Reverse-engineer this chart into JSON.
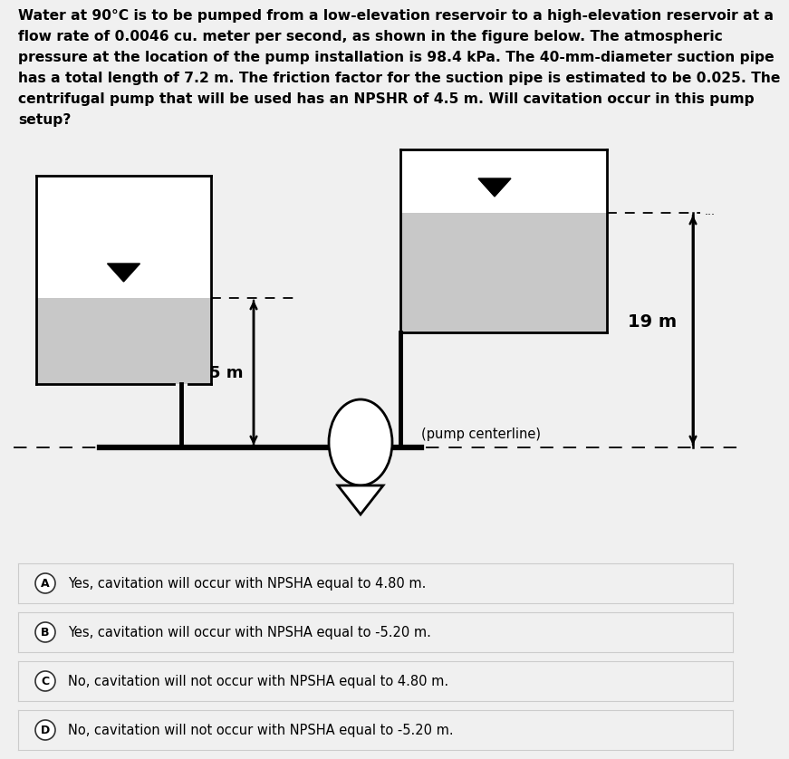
{
  "title_lines": [
    "Water at 90°C is to be pumped from a low-elevation reservoir to a high-elevation reservoir at a",
    "flow rate of 0.0046 cu. meter per second, as shown in the figure below. The atmospheric",
    "pressure at the location of the pump installation is 98.4 kPa. The 40-mm-diameter suction pipe",
    "has a total length of 7.2 m. The friction factor for the suction pipe is estimated to be 0.025. The",
    "centrifugal pump that will be used has an NPSHR of 4.5 m. Will cavitation occur in this pump",
    "setup?"
  ],
  "bg_color": "#f0f0f0",
  "water_color": "#c8c8c8",
  "border_color": "#000000",
  "label_5m": "5 m",
  "label_19m": "19 m",
  "label_pump": "(pump centerline)",
  "answer_A": "Yes, cavitation will occur with NPSHA equal to 4.80 m.",
  "answer_B": "Yes, cavitation will occur with NPSHA equal to -5.20 m.",
  "answer_C": "No, cavitation will not occur with NPSHA equal to 4.80 m.",
  "answer_D": "No, cavitation will not occur with NPSHA equal to -5.20 m.",
  "option_bg": "#f0f0f0",
  "option_border": "#cccccc",
  "title_fontsize": 11.2,
  "option_fontsize": 10.5
}
